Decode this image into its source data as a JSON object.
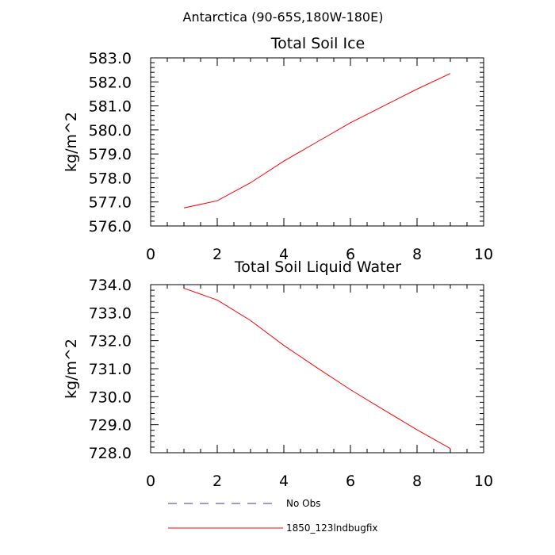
{
  "figure_title": "Antarctica (90-65S,180W-180E)",
  "chart_data": [
    {
      "type": "line",
      "title": "Total Soil Ice",
      "xlabel": "",
      "ylabel": "kg/m^2",
      "xlim": [
        0,
        10
      ],
      "ylim": [
        576.0,
        583.0
      ],
      "xticks": [
        "0",
        "2",
        "4",
        "6",
        "8",
        "10"
      ],
      "yticks": [
        "576.0",
        "577.0",
        "578.0",
        "579.0",
        "580.0",
        "581.0",
        "582.0",
        "583.0"
      ],
      "grid": false,
      "series": [
        {
          "name": "1850_123lndbugfix",
          "color": "#ff0000",
          "x": [
            1,
            2,
            3,
            4,
            5,
            6,
            7,
            8,
            9
          ],
          "y": [
            576.75,
            577.05,
            577.8,
            578.7,
            579.5,
            580.3,
            581.0,
            581.7,
            582.35
          ]
        }
      ]
    },
    {
      "type": "line",
      "title": "Total Soil Liquid Water",
      "xlabel": "",
      "ylabel": "kg/m^2",
      "xlim": [
        0,
        10
      ],
      "ylim": [
        728.0,
        734.0
      ],
      "xticks": [
        "0",
        "2",
        "4",
        "6",
        "8",
        "10"
      ],
      "yticks": [
        "728.0",
        "729.0",
        "730.0",
        "731.0",
        "732.0",
        "733.0",
        "734.0"
      ],
      "grid": false,
      "series": [
        {
          "name": "1850_123lndbugfix",
          "color": "#ff0000",
          "x": [
            1,
            2,
            3,
            4,
            5,
            6,
            7,
            8,
            9
          ],
          "y": [
            733.87,
            733.45,
            732.72,
            731.83,
            731.03,
            730.25,
            729.53,
            728.82,
            728.15
          ]
        }
      ]
    }
  ],
  "legend": {
    "placement": "bottom",
    "items": [
      {
        "label": "No Obs",
        "color": "#3b3b8f",
        "dash": "dashed"
      },
      {
        "label": "1850_123lndbugfix",
        "color": "#ff0000",
        "dash": "solid"
      }
    ]
  }
}
